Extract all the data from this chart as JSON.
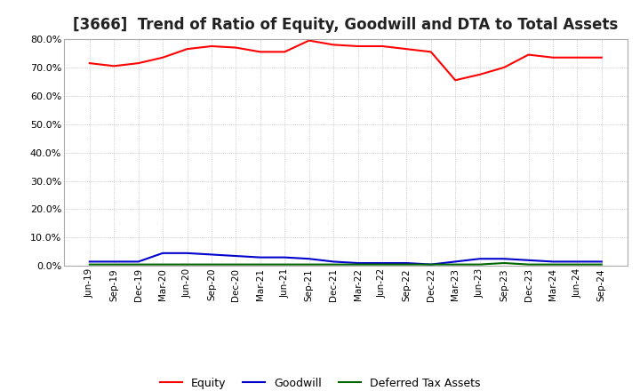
{
  "title": "[3666]  Trend of Ratio of Equity, Goodwill and DTA to Total Assets",
  "x_labels": [
    "Jun-19",
    "Sep-19",
    "Dec-19",
    "Mar-20",
    "Jun-20",
    "Sep-20",
    "Dec-20",
    "Mar-21",
    "Jun-21",
    "Sep-21",
    "Dec-21",
    "Mar-22",
    "Jun-22",
    "Sep-22",
    "Dec-22",
    "Mar-23",
    "Jun-23",
    "Sep-23",
    "Dec-23",
    "Mar-24",
    "Jun-24",
    "Sep-24"
  ],
  "equity": [
    71.5,
    70.5,
    71.5,
    73.5,
    76.5,
    77.5,
    77.0,
    75.5,
    75.5,
    79.5,
    78.0,
    77.5,
    77.5,
    76.5,
    75.5,
    65.5,
    67.5,
    70.0,
    74.5,
    73.5,
    73.5,
    73.5
  ],
  "goodwill": [
    1.5,
    1.5,
    1.5,
    4.5,
    4.5,
    4.0,
    3.5,
    3.0,
    3.0,
    2.5,
    1.5,
    1.0,
    1.0,
    1.0,
    0.5,
    1.5,
    2.5,
    2.5,
    2.0,
    1.5,
    1.5,
    1.5
  ],
  "dta": [
    0.5,
    0.5,
    0.5,
    0.5,
    0.5,
    0.5,
    0.5,
    0.5,
    0.5,
    0.5,
    0.5,
    0.5,
    0.5,
    0.5,
    0.5,
    0.5,
    0.5,
    1.0,
    0.5,
    0.5,
    0.5,
    0.5
  ],
  "equity_color": "#ff0000",
  "goodwill_color": "#0000cc",
  "dta_color": "#006600",
  "ylim": [
    0.0,
    80.0
  ],
  "yticks": [
    0.0,
    10.0,
    20.0,
    30.0,
    40.0,
    50.0,
    60.0,
    70.0,
    80.0
  ],
  "background_color": "#ffffff",
  "grid_color": "#aaaaaa",
  "title_fontsize": 12,
  "legend_labels": [
    "Equity",
    "Goodwill",
    "Deferred Tax Assets"
  ]
}
